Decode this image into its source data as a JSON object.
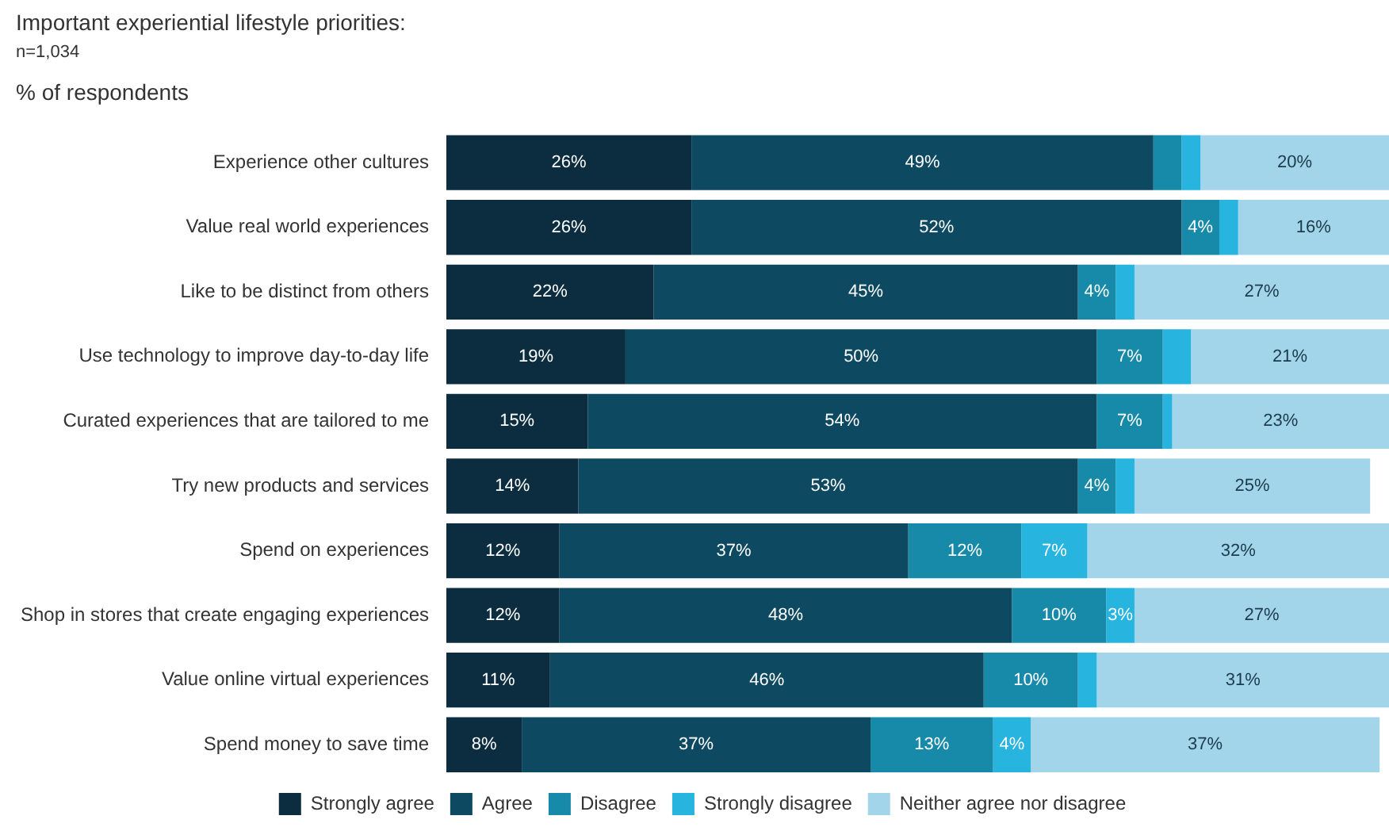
{
  "chart_data": {
    "type": "bar",
    "title": "Important experiential lifestyle priorities:",
    "subtitle": "n=1,034",
    "annotations": [
      "% of respondents"
    ],
    "orientation": "horizontal",
    "stacked": true,
    "legend": "bottom",
    "tick_labels": "y",
    "categories": [
      "Experience other cultures",
      "Value real world experiences",
      "Like to be distinct from others",
      "Use technology to improve day-to-day life",
      "Curated experiences that are tailored to me",
      "Try new products and services",
      "Spend on experiences",
      "Shop in stores that create engaging experiences",
      "Value online virtual experiences",
      "Spend money to save time"
    ],
    "series": [
      {
        "name": "Strongly agree",
        "color": "#0c2d3f",
        "values": [
          26,
          26,
          22,
          19,
          15,
          14,
          12,
          12,
          11,
          8
        ],
        "value_labels": [
          "26%",
          "26%",
          "22%",
          "19%",
          "15%",
          "14%",
          "12%",
          "12%",
          "11%",
          "8%"
        ]
      },
      {
        "name": "Agree",
        "color": "#0d4a62",
        "values": [
          49,
          52,
          45,
          50,
          54,
          53,
          37,
          48,
          46,
          37
        ],
        "value_labels": [
          "49%",
          "52%",
          "45%",
          "50%",
          "54%",
          "53%",
          "37%",
          "48%",
          "46%",
          "37%"
        ]
      },
      {
        "name": "Disagree",
        "color": "#168aa8",
        "values": [
          3,
          4,
          4,
          7,
          7,
          4,
          12,
          10,
          10,
          13
        ],
        "value_labels": [
          null,
          "4%",
          "4%",
          "7%",
          "7%",
          "4%",
          "12%",
          "10%",
          "10%",
          "13%"
        ]
      },
      {
        "name": "Strongly disagree",
        "color": "#27b4df",
        "values": [
          2,
          2,
          2,
          3,
          1,
          2,
          7,
          3,
          2,
          4
        ],
        "value_labels": [
          null,
          null,
          null,
          null,
          null,
          null,
          "7%",
          "3%",
          null,
          "4%"
        ]
      },
      {
        "name": "Neither agree nor disagree",
        "color": "#a2d4ea",
        "values": [
          20,
          16,
          27,
          21,
          23,
          25,
          32,
          27,
          31,
          37
        ],
        "value_labels": [
          "20%",
          "16%",
          "27%",
          "21%",
          "23%",
          "25%",
          "32%",
          "27%",
          "31%",
          "37%"
        ]
      }
    ]
  }
}
